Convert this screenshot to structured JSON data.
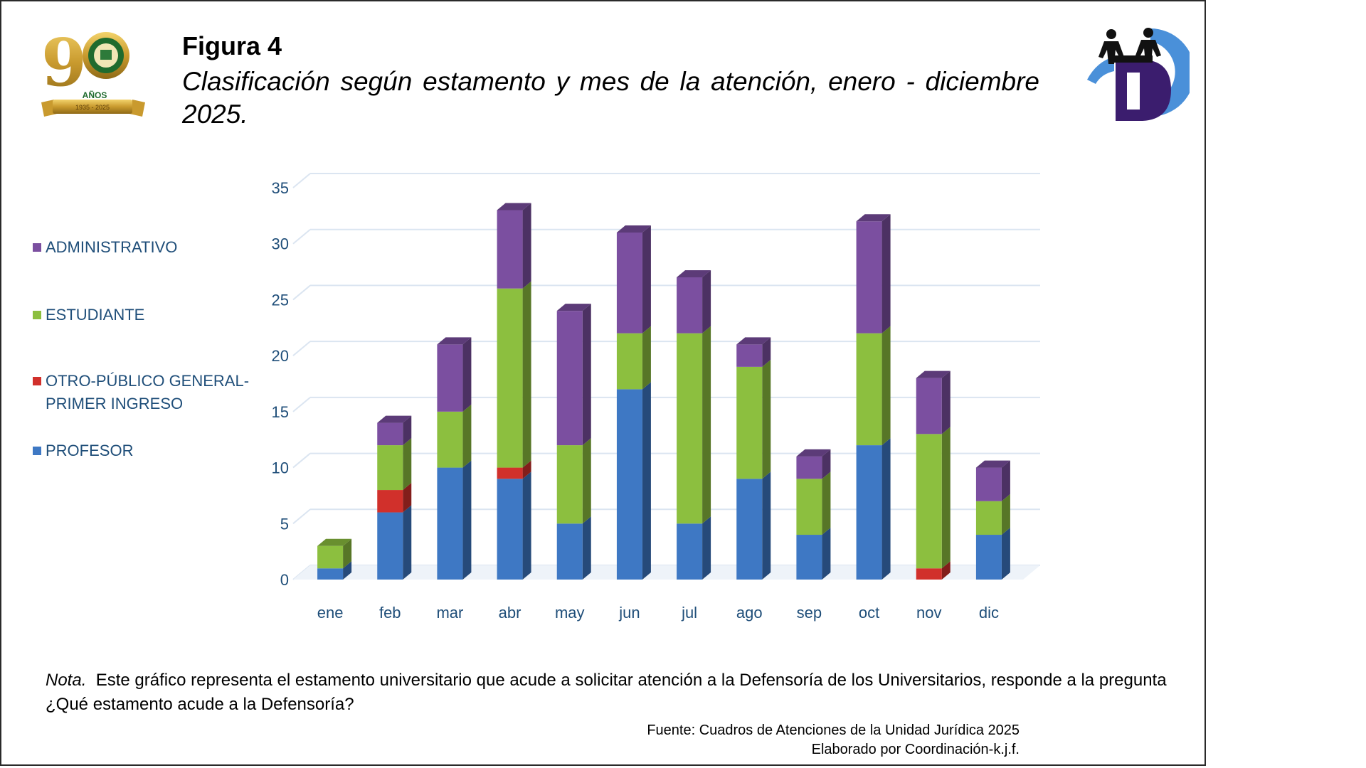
{
  "figure": {
    "title": "Figura 4",
    "subtitle": "Clasificación según estamento y mes de la atención, enero - diciembre 2025."
  },
  "logos": {
    "left": {
      "number": "90",
      "label": "AÑOS",
      "years": "1935 - 2025"
    },
    "right": {
      "letter": "D"
    }
  },
  "colors": {
    "administrativo": "#7b4fa0",
    "estudiante": "#8cbf3f",
    "otro": "#d1302b",
    "profesor": "#3e78c4",
    "axis_text": "#1f4e79",
    "grid": "#dbe5f1"
  },
  "legend": [
    {
      "key": "administrativo",
      "lines": [
        "ADMINISTRATIVO"
      ]
    },
    {
      "key": "estudiante",
      "lines": [
        "ESTUDIANTE"
      ]
    },
    {
      "key": "otro",
      "lines": [
        "OTRO-PÚBLICO GENERAL-",
        "PRIMER INGRESO"
      ]
    },
    {
      "key": "profesor",
      "lines": [
        "PROFESOR"
      ]
    }
  ],
  "chart_data": {
    "type": "bar",
    "stacked": true,
    "categories": [
      "ene",
      "feb",
      "mar",
      "abr",
      "may",
      "jun",
      "jul",
      "ago",
      "sep",
      "oct",
      "nov",
      "dic"
    ],
    "series": [
      {
        "name": "PROFESOR",
        "key": "profesor",
        "values": [
          1,
          6,
          10,
          9,
          5,
          17,
          5,
          9,
          4,
          12,
          0,
          4
        ]
      },
      {
        "name": "OTRO-PÚBLICO GENERAL-PRIMER INGRESO",
        "key": "otro",
        "values": [
          0,
          2,
          0,
          1,
          0,
          0,
          0,
          0,
          0,
          0,
          1,
          0
        ]
      },
      {
        "name": "ESTUDIANTE",
        "key": "estudiante",
        "values": [
          2,
          4,
          5,
          16,
          7,
          5,
          17,
          10,
          5,
          10,
          12,
          3
        ]
      },
      {
        "name": "ADMINISTRATIVO",
        "key": "administrativo",
        "values": [
          0,
          2,
          6,
          7,
          12,
          9,
          5,
          2,
          2,
          10,
          5,
          3
        ]
      }
    ],
    "yticks": [
      0,
      5,
      10,
      15,
      20,
      25,
      30,
      35
    ],
    "ylim": [
      0,
      35
    ],
    "legend_position": "left"
  },
  "nota": {
    "label": "Nota.",
    "text": "Este gráfico representa el estamento universitario que acude a  solicitar atención a la Defensoría de los Universitarios, responde a la pregunta  ¿Qué estamento acude a la Defensoría?"
  },
  "fuente": {
    "line1": "Fuente: Cuadros de Atenciones de la Unidad Jurídica 2025",
    "line2": "Elaborado por Coordinación-k.j.f."
  }
}
